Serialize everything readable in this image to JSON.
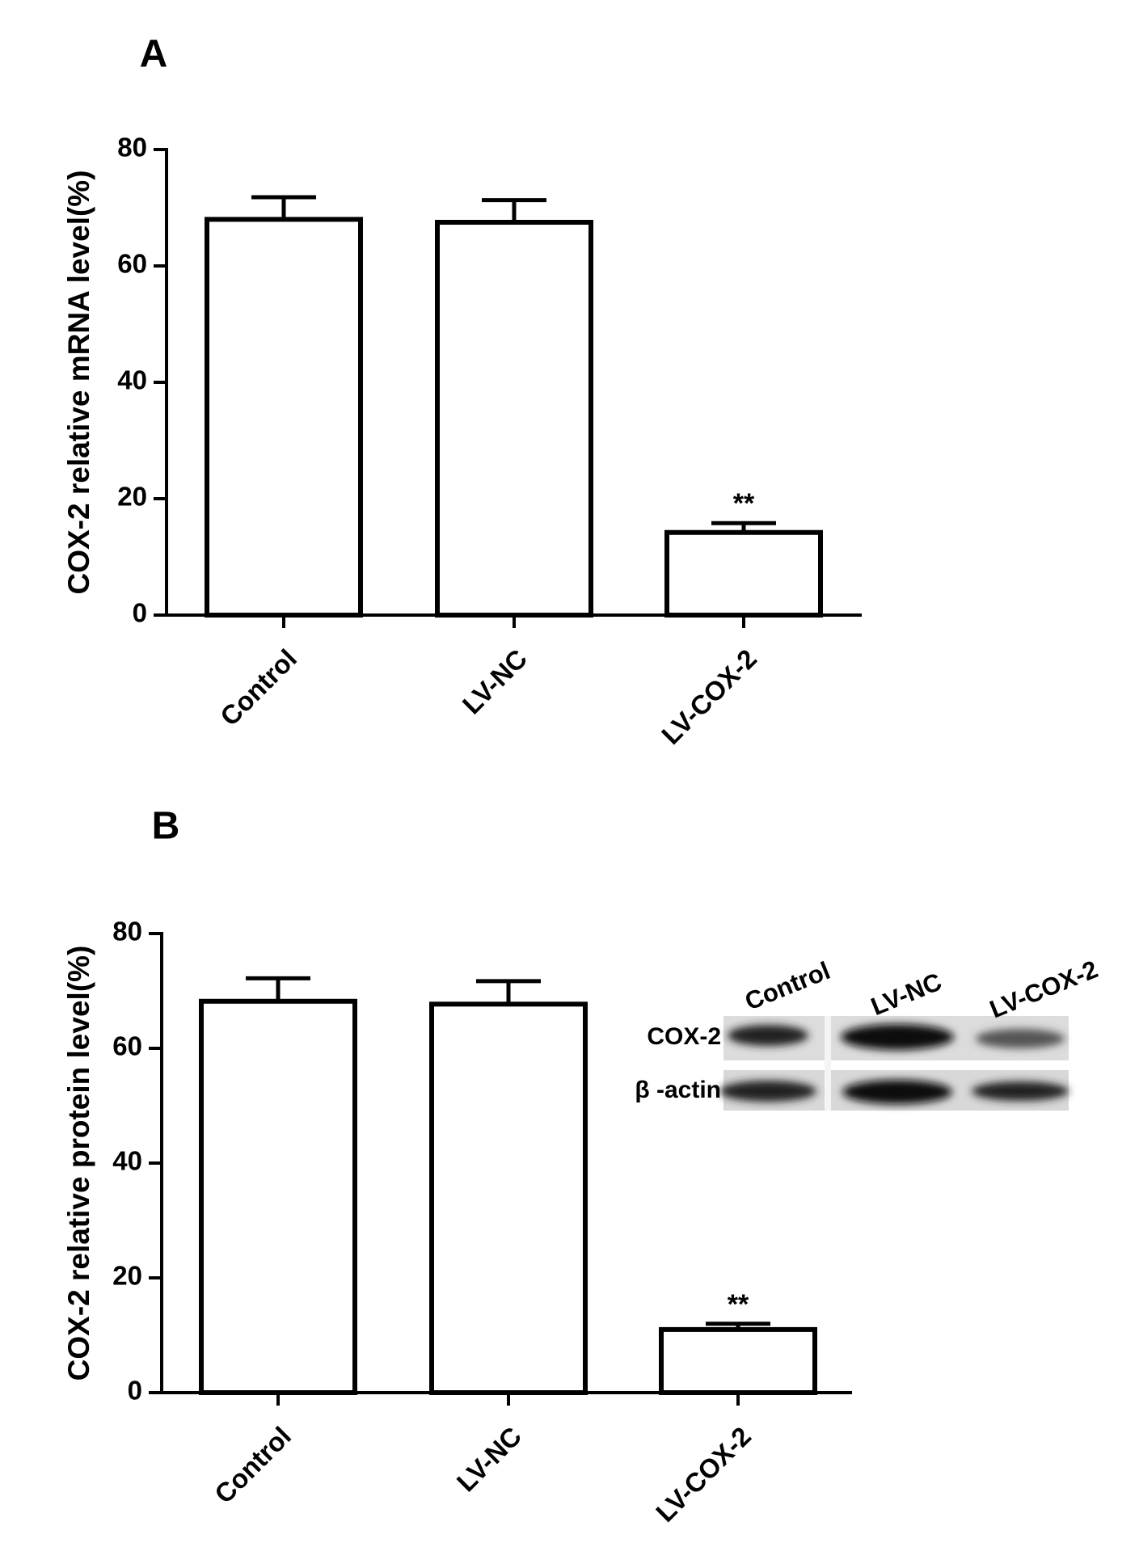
{
  "chart_data": [
    {
      "type": "bar",
      "panel_label": "A",
      "y_label": "COX-2 relative mRNA level(%)",
      "categories": [
        "Control",
        "LV-NC",
        "LV-COX-2"
      ],
      "values": [
        68,
        67.5,
        14.2
      ],
      "errors": [
        3.8,
        3.8,
        1.6
      ],
      "significance_labels": [
        null,
        null,
        "**"
      ],
      "color": "#ffffff",
      "ylim": [
        0,
        80
      ],
      "yticks": [
        0,
        20,
        40,
        60,
        80
      ]
    },
    {
      "type": "bar",
      "panel_label": "B",
      "y_label": "COX-2 relative protein level(%)",
      "categories": [
        "Control",
        "LV-NC",
        "LV-COX-2"
      ],
      "values": [
        68.2,
        67.7,
        11
      ],
      "errors": [
        4,
        4,
        1
      ],
      "significance_labels": [
        null,
        null,
        "**"
      ],
      "color": "#ffffff",
      "ylim": [
        0,
        80
      ],
      "yticks": [
        0,
        20,
        40,
        60,
        80
      ],
      "inset": {
        "lane_labels": [
          "Control",
          "LV-NC",
          "LV-COX-2"
        ],
        "row_labels": [
          "COX-2",
          "β -actin"
        ]
      }
    }
  ]
}
